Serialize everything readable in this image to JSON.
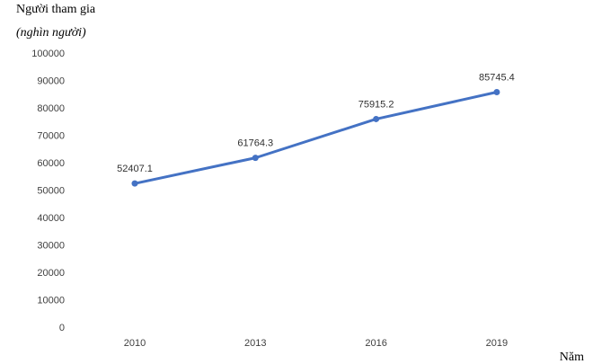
{
  "chart_data": {
    "type": "line",
    "ylabel": "Người tham gia",
    "ylabel_unit": "(nghìn người)",
    "xlabel": "Năm",
    "ylim": [
      0,
      100000
    ],
    "yticks": [
      0,
      10000,
      20000,
      30000,
      40000,
      50000,
      60000,
      70000,
      80000,
      90000,
      100000
    ],
    "categories": [
      "2010",
      "2013",
      "2016",
      "2019"
    ],
    "series": [
      {
        "values": [
          52407.1,
          61764.3,
          75915.2,
          85745.4
        ],
        "data_labels": [
          "52407.1",
          "61764.3",
          "75915.2",
          "85745.4"
        ],
        "color": "#4472C4"
      }
    ],
    "grid": false,
    "legend": "none"
  }
}
